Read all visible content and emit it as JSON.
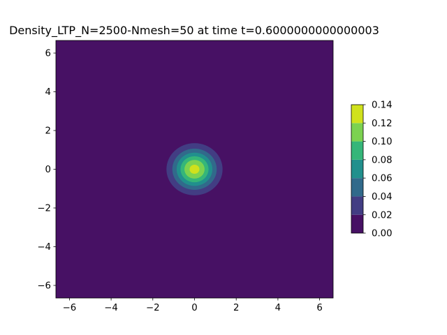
{
  "chart_data": {
    "type": "contourf",
    "title": "Density_LTP_N=2500-Nmesh=50 at time t=0.6000000000000003",
    "xlabel": "",
    "ylabel": "",
    "xlim": [
      -6.65,
      6.65
    ],
    "ylim": [
      -6.65,
      6.65
    ],
    "x_ticks": [
      -6,
      -4,
      -2,
      0,
      2,
      4,
      6
    ],
    "y_ticks": [
      -6,
      -4,
      -2,
      0,
      2,
      4,
      6
    ],
    "x_tick_labels": [
      "−6",
      "−4",
      "−2",
      "0",
      "2",
      "4",
      "6"
    ],
    "y_tick_labels": [
      "−6",
      "−4",
      "−2",
      "0",
      "2",
      "4",
      "6"
    ],
    "grid": false,
    "field": {
      "kind": "gaussian",
      "center": [
        0,
        0
      ],
      "peak": 0.127,
      "sigma": 0.7,
      "note_ring_radii_by_level": [
        {
          "level": 0.02,
          "radius": 2.15
        },
        {
          "level": 0.04,
          "radius": 1.7
        },
        {
          "level": 0.06,
          "radius": 1.3
        },
        {
          "level": 0.08,
          "radius": 0.95
        },
        {
          "level": 0.1,
          "radius": 0.7
        },
        {
          "level": 0.12,
          "radius": 0.4
        }
      ]
    },
    "levels": [
      0.0,
      0.02,
      0.04,
      0.06,
      0.08,
      0.1,
      0.12,
      0.14
    ],
    "colors": [
      "#471164",
      "#423d83",
      "#316a8b",
      "#21908d",
      "#35b679",
      "#7cd250",
      "#d0e11c"
    ],
    "colorbar": {
      "ticks": [
        0.0,
        0.02,
        0.04,
        0.06,
        0.08,
        0.1,
        0.12,
        0.14
      ],
      "tick_labels": [
        "0.00",
        "0.02",
        "0.04",
        "0.06",
        "0.08",
        "0.10",
        "0.12",
        "0.14"
      ],
      "placement": "right"
    }
  }
}
